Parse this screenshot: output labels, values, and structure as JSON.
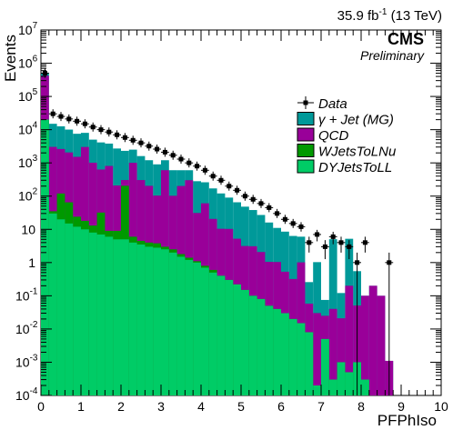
{
  "chart_data": {
    "type": "bar",
    "lumi_label": "35.9 fb",
    "lumi_sup": "-1",
    "lumi_energy": " (13 TeV)",
    "experiment": "CMS",
    "status": "Preliminary",
    "xlabel": "PFPhIso",
    "ylabel": "Events",
    "xlim": [
      0,
      10
    ],
    "ylim": [
      0.0001,
      10000000
    ],
    "yscale": "log",
    "x_ticks": [
      "0",
      "1",
      "2",
      "3",
      "4",
      "5",
      "6",
      "7",
      "8",
      "9",
      "10"
    ],
    "y_ticks": [
      {
        "base": "10",
        "exp": "-4"
      },
      {
        "base": "10",
        "exp": "-3"
      },
      {
        "base": "10",
        "exp": "-2"
      },
      {
        "base": "10",
        "exp": "-1"
      },
      {
        "base": "1",
        "exp": ""
      },
      {
        "base": "10",
        "exp": ""
      },
      {
        "base": "10",
        "exp": "2"
      },
      {
        "base": "10",
        "exp": "3"
      },
      {
        "base": "10",
        "exp": "4"
      },
      {
        "base": "10",
        "exp": "5"
      },
      {
        "base": "10",
        "exp": "6"
      },
      {
        "base": "10",
        "exp": "7"
      }
    ],
    "legend_position": "top-right",
    "bin_edges": [
      0,
      0.2,
      0.4,
      0.6,
      0.8,
      1.0,
      1.2,
      1.4,
      1.6,
      1.8,
      2.0,
      2.2,
      2.4,
      2.6,
      2.8,
      3.0,
      3.2,
      3.4,
      3.6,
      3.8,
      4.0,
      4.2,
      4.4,
      4.6,
      4.8,
      5.0,
      5.2,
      5.4,
      5.6,
      5.8,
      6.0,
      6.2,
      6.4,
      6.6,
      6.8,
      7.0,
      7.2,
      7.4,
      7.6,
      7.8,
      8.0,
      8.2,
      8.4,
      8.6,
      8.8,
      9.0
    ],
    "stack_order_bottom_to_top": [
      "DYJetsToLL",
      "WJetsToLNu",
      "QCD",
      "γ + Jet (MG)"
    ],
    "series": [
      {
        "name": "DYJetsToLL",
        "color": "#00cc66",
        "values": [
          20000,
          30,
          20,
          15,
          12,
          10,
          8,
          7,
          6,
          5,
          5,
          4,
          3.5,
          3,
          2.8,
          2.5,
          2,
          1.5,
          1.2,
          1,
          0.7,
          0.5,
          0.4,
          0.3,
          0.22,
          0.15,
          0.1,
          0.08,
          0.05,
          0.04,
          0.03,
          0.02,
          0.015,
          0.008,
          0.0002,
          0.005,
          0.0003,
          0.001,
          0.0005,
          0.001,
          0.0003,
          0.0001,
          0.0001,
          0.0001,
          0.0001
        ]
      },
      {
        "name": "WJetsToLNu",
        "color": "#009900",
        "values": [
          0,
          5,
          100,
          50,
          12,
          8,
          5,
          25,
          3,
          4,
          200,
          2,
          1,
          1,
          1,
          0.5,
          0.5,
          0.3,
          0.2,
          0.1,
          0.1,
          0.1,
          0,
          0,
          0,
          0,
          0,
          0,
          0,
          0,
          0,
          0,
          0,
          0,
          0,
          0,
          0,
          0,
          0,
          0,
          0,
          0,
          0,
          0,
          0
        ]
      },
      {
        "name": "QCD",
        "color": "#990099",
        "values": [
          400000,
          3000,
          2500,
          2000,
          1500,
          3000,
          1000,
          600,
          800,
          200,
          100,
          1000,
          300,
          200,
          100,
          600,
          100,
          200,
          300,
          30,
          60,
          20,
          10,
          10,
          5,
          3,
          3,
          2,
          1,
          1,
          0.5,
          0.3,
          1,
          0.05,
          0.03,
          0.02,
          0.04,
          0.02,
          0.2,
          0.05,
          0.1,
          0.2,
          0.1,
          0.001,
          0
        ]
      },
      {
        "name": "γ + Jet (MG)",
        "color": "#009999",
        "values": [
          100000,
          12000,
          10000,
          8000,
          6000,
          5000,
          4000,
          3500,
          3000,
          2500,
          2000,
          1500,
          1300,
          1000,
          800,
          600,
          500,
          400,
          300,
          250,
          200,
          150,
          110,
          80,
          60,
          45,
          35,
          25,
          15,
          10,
          8,
          6,
          5,
          0.2,
          1,
          0.05,
          5,
          0.1,
          5,
          0.5,
          0,
          0,
          0,
          0,
          0
        ]
      }
    ],
    "data": {
      "name": "Data",
      "color": "#000000",
      "x": [
        0.1,
        0.3,
        0.5,
        0.7,
        0.9,
        1.1,
        1.3,
        1.5,
        1.7,
        1.9,
        2.1,
        2.3,
        2.5,
        2.7,
        2.9,
        3.1,
        3.3,
        3.5,
        3.7,
        3.9,
        4.1,
        4.3,
        4.5,
        4.7,
        4.9,
        5.1,
        5.3,
        5.5,
        5.7,
        5.9,
        6.1,
        6.3,
        6.5,
        6.7,
        6.9,
        7.1,
        7.3,
        7.5,
        7.7,
        7.9,
        8.1,
        8.7
      ],
      "y": [
        500000,
        30000,
        25000,
        21000,
        18000,
        15000,
        12000,
        10000,
        8500,
        7000,
        5800,
        4800,
        4000,
        3200,
        2600,
        2100,
        1700,
        1300,
        1000,
        800,
        600,
        400,
        300,
        200,
        150,
        100,
        80,
        60,
        45,
        30,
        20,
        15,
        12,
        4,
        7,
        3,
        6,
        4,
        3,
        1,
        4,
        1
      ]
    }
  }
}
